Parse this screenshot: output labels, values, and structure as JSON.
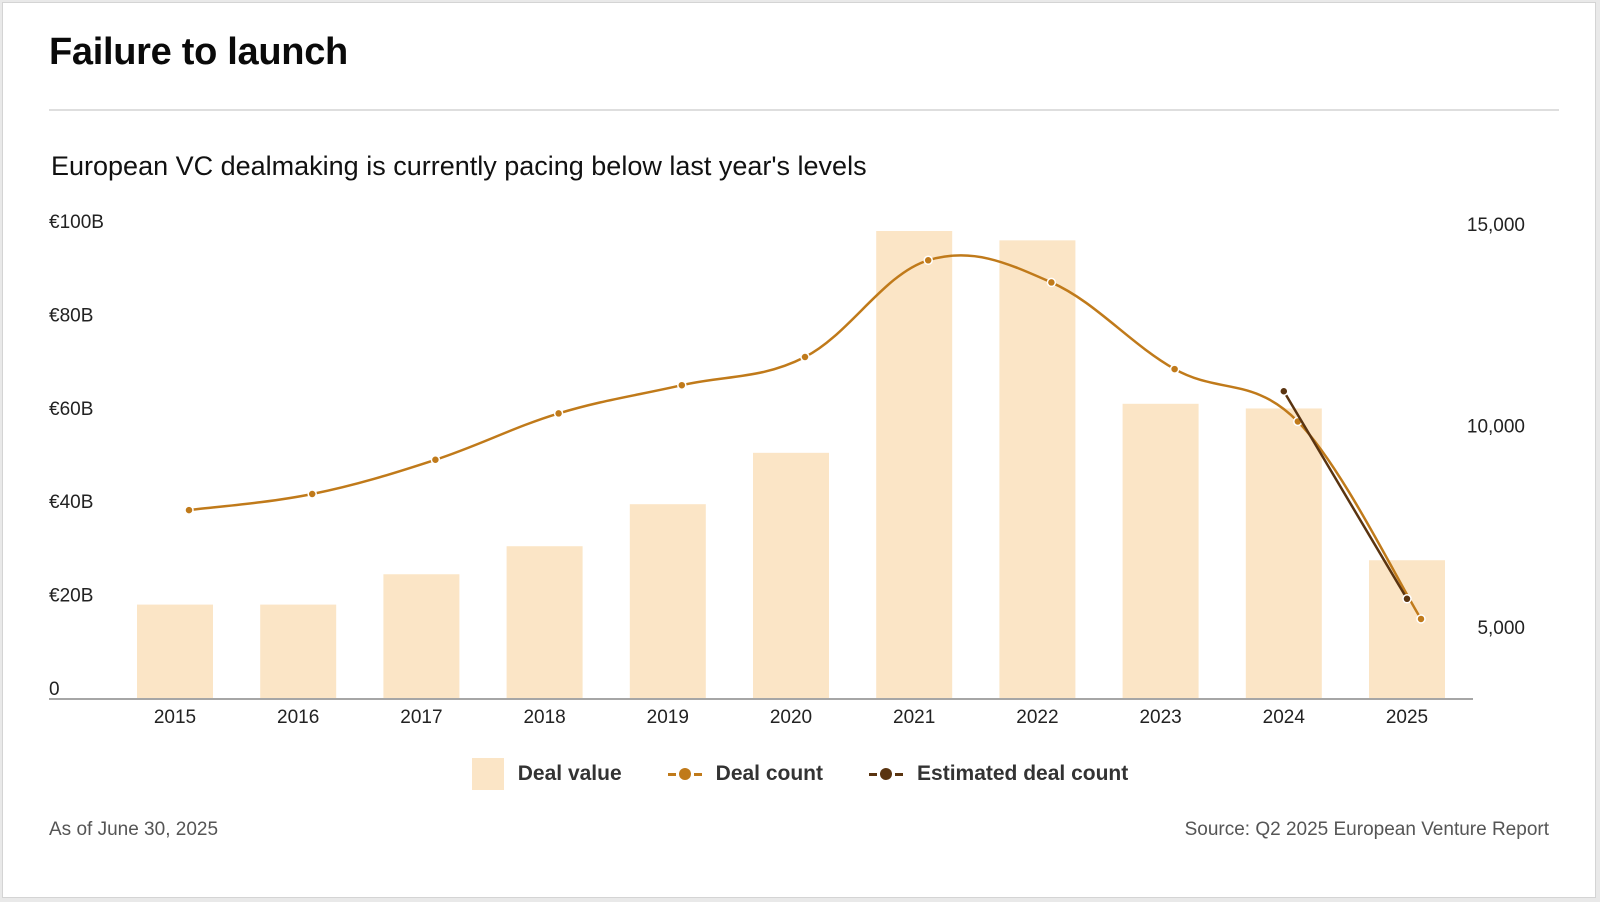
{
  "header": {
    "title": "Failure to launch",
    "subtitle": "European VC dealmaking is currently pacing below last year's levels"
  },
  "footer": {
    "note": "As of June 30, 2025",
    "source": "Source: Q2 2025 European Venture Report"
  },
  "colors": {
    "deal_value": "#fbe5c6",
    "deal_count": "#c07a1a",
    "estimated_deal_count": "#5a3410"
  },
  "chart_data": {
    "type": "bar",
    "title": "European VC dealmaking is currently pacing below last year's levels",
    "categories": [
      "2015",
      "2016",
      "2017",
      "2018",
      "2019",
      "2020",
      "2021",
      "2022",
      "2023",
      "2024",
      "2025"
    ],
    "y_left": {
      "ticks": [
        "0",
        "€20B",
        "€40B",
        "€60B",
        "€80B",
        "€100B"
      ],
      "tick_values": [
        0,
        20,
        40,
        60,
        80,
        100
      ],
      "ylim": [
        0,
        100
      ]
    },
    "y_right": {
      "ticks": [
        "5,000",
        "10,000",
        "15,000"
      ],
      "tick_values": [
        5000,
        10000,
        15000
      ],
      "ylim": [
        3250,
        15200
      ]
    },
    "grid": false,
    "legend_position": "bottom-center",
    "series": [
      {
        "name": "Deal value",
        "type": "bar",
        "axis": "left",
        "values": [
          20,
          20,
          26.5,
          32.5,
          41.5,
          52.5,
          100,
          98,
          63,
          62,
          29.5
        ]
      },
      {
        "name": "Deal count",
        "type": "line",
        "axis": "right",
        "values": [
          7900,
          8300,
          9150,
          10300,
          11000,
          11700,
          14100,
          13550,
          11400,
          10100,
          5200
        ]
      },
      {
        "name": "Estimated deal count",
        "type": "line",
        "axis": "right",
        "x": [
          "2024",
          "2025"
        ],
        "values": [
          10850,
          5700
        ]
      }
    ]
  }
}
